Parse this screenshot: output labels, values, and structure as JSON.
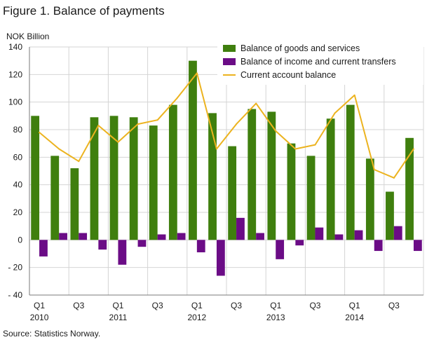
{
  "figure": {
    "title": "Figure 1. Balance of payments",
    "unit_label": "NOK Billion",
    "source": "Source: Statistics Norway."
  },
  "colors": {
    "goods": "#3f7f0e",
    "income": "#6b0c86",
    "current": "#ecb31f",
    "grid": "#d4d4d4",
    "axis": "#7a7a7a"
  },
  "chart_data": {
    "type": "bar",
    "categories": [
      "Q1 2010",
      "Q2 2010",
      "Q3 2010",
      "Q4 2010",
      "Q1 2011",
      "Q2 2011",
      "Q3 2011",
      "Q4 2011",
      "Q1 2012",
      "Q2 2012",
      "Q3 2012",
      "Q4 2012",
      "Q1 2013",
      "Q2 2013",
      "Q3 2013",
      "Q4 2013",
      "Q1 2014",
      "Q2 2014",
      "Q3 2014",
      "Q4 2014"
    ],
    "x_tick_labels": [
      {
        "index": 0,
        "line1": "Q1",
        "line2": "2010"
      },
      {
        "index": 2,
        "line1": "Q3",
        "line2": ""
      },
      {
        "index": 4,
        "line1": "Q1",
        "line2": "2011"
      },
      {
        "index": 6,
        "line1": "Q3",
        "line2": ""
      },
      {
        "index": 8,
        "line1": "Q1",
        "line2": "2012"
      },
      {
        "index": 10,
        "line1": "Q3",
        "line2": ""
      },
      {
        "index": 12,
        "line1": "Q1",
        "line2": "2013"
      },
      {
        "index": 14,
        "line1": "Q3",
        "line2": ""
      },
      {
        "index": 16,
        "line1": "Q1",
        "line2": "2014"
      },
      {
        "index": 18,
        "line1": "Q3",
        "line2": ""
      }
    ],
    "series": [
      {
        "name": "Balance of goods and services",
        "kind": "bar",
        "values": [
          90,
          61,
          52,
          89,
          90,
          89,
          83,
          98,
          130,
          92,
          68,
          95,
          93,
          70,
          61,
          88,
          98,
          59,
          35,
          74
        ]
      },
      {
        "name": "Balance of income and current transfers",
        "kind": "bar",
        "values": [
          -12,
          5,
          5,
          -7,
          -18,
          -5,
          4,
          5,
          -9,
          -26,
          16,
          5,
          -14,
          -4,
          9,
          4,
          7,
          -8,
          10,
          -8
        ]
      },
      {
        "name": "Current account balance",
        "kind": "line",
        "values": [
          78,
          66,
          57,
          83,
          71,
          84,
          87,
          103,
          121,
          66,
          84,
          99,
          79,
          66,
          69,
          92,
          105,
          51,
          45,
          66
        ]
      }
    ],
    "ylim": [
      -40,
      140
    ],
    "y_ticks": [
      {
        "value": 140,
        "label": "140"
      },
      {
        "value": 120,
        "label": "120"
      },
      {
        "value": 100,
        "label": "100"
      },
      {
        "value": 80,
        "label": "80"
      },
      {
        "value": 60,
        "label": "60"
      },
      {
        "value": 40,
        "label": "40"
      },
      {
        "value": 20,
        "label": "20"
      },
      {
        "value": 0,
        "label": "0"
      },
      {
        "value": -20,
        "label": "- 20"
      },
      {
        "value": -40,
        "label": "- 40"
      }
    ],
    "grid": true,
    "legend_position": "top-right"
  }
}
